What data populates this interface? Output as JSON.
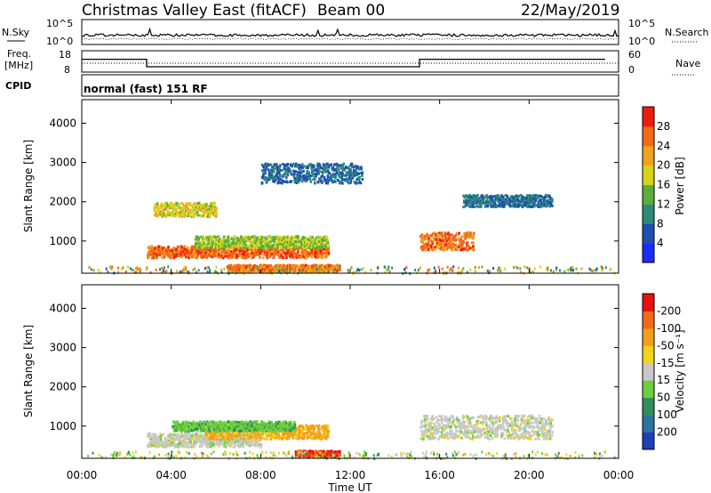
{
  "header": {
    "title": "Christmas Valley East (fitACF)",
    "beam": "Beam 00",
    "date": "22/May/2019"
  },
  "noise_panel": {
    "left_label": "N.Sky",
    "right_label": "N.Search",
    "left_ticks": [
      "10^5",
      "10^0"
    ],
    "right_ticks": [
      "10^5",
      "10^0"
    ]
  },
  "freq_panel": {
    "left_label_1": "Freq.",
    "left_label_2": "[MHz]",
    "right_label": "Nave",
    "left_ticks": [
      "18",
      "8"
    ],
    "right_ticks": [
      "60",
      "0"
    ],
    "cpid_label": "CPID",
    "cpid_value": "normal (fast) 151 RF"
  },
  "time_axis": {
    "label": "Time UT",
    "ticks": [
      "00:00",
      "04:00",
      "08:00",
      "12:00",
      "16:00",
      "20:00",
      "00:00"
    ]
  },
  "range_axis": {
    "label": "Slant Range [km]",
    "ticks": [
      "1000",
      "2000",
      "3000",
      "4000"
    ]
  },
  "power_colorbar": {
    "label": "Power [dB]",
    "ticks": [
      "4",
      "8",
      "12",
      "16",
      "20",
      "24",
      "28"
    ],
    "colors": [
      "#1a2cff",
      "#1f4fb0",
      "#2d8a78",
      "#5aae3c",
      "#d8d21a",
      "#f0a21a",
      "#f46a16",
      "#ee1c10"
    ]
  },
  "velocity_colorbar": {
    "label": "Velocity [m s⁻¹]",
    "ticks": [
      "200",
      "100",
      "50",
      "15",
      "-15",
      "-50",
      "-100",
      "-200"
    ],
    "colors": [
      "#1f3fb8",
      "#2b74a0",
      "#2e8f5a",
      "#6ecf3c",
      "#c8c8c8",
      "#f2d21a",
      "#f2a01a",
      "#f26a14",
      "#e81010"
    ]
  },
  "chart_data": {
    "type": "heatmap",
    "title": "Christmas Valley East (fitACF)",
    "subtitle": "Beam 00  22/May/2019",
    "xlabel": "Time UT",
    "ylabel": "Slant Range [km]",
    "xlim": [
      0,
      24
    ],
    "ylim": [
      180,
      4600
    ],
    "freq_schedule_mhz": [
      {
        "start": 0,
        "end": 2.9,
        "freq": 14.0
      },
      {
        "start": 2.9,
        "end": 15.1,
        "freq": 10.5
      },
      {
        "start": 15.1,
        "end": 23.4,
        "freq": 14.0
      }
    ],
    "power_regions_db": [
      {
        "t0": 2.9,
        "t1": 11.0,
        "r0": 600,
        "r1": 900,
        "power": 26
      },
      {
        "t0": 5.0,
        "t1": 11.0,
        "r0": 850,
        "r1": 1150,
        "power": 16
      },
      {
        "t0": 3.2,
        "t1": 6.0,
        "r0": 1650,
        "r1": 2000,
        "power": 18
      },
      {
        "t0": 6.5,
        "t1": 11.5,
        "r0": 250,
        "r1": 420,
        "power": 25
      },
      {
        "t0": 15.1,
        "t1": 17.5,
        "r0": 800,
        "r1": 1250,
        "power": 25
      },
      {
        "t0": 17.0,
        "t1": 21.0,
        "r0": 1900,
        "r1": 2200,
        "power": 8
      },
      {
        "t0": 8.0,
        "t1": 12.5,
        "r0": 2500,
        "r1": 3000,
        "power": 8
      }
    ],
    "velocity_regions_ms": [
      {
        "t0": 2.9,
        "t1": 8.0,
        "r0": 500,
        "r1": 850,
        "velocity": 0
      },
      {
        "t0": 5.5,
        "t1": 11.0,
        "r0": 700,
        "r1": 1050,
        "velocity": -60
      },
      {
        "t0": 4.0,
        "t1": 9.5,
        "r0": 900,
        "r1": 1150,
        "velocity": 40
      },
      {
        "t0": 9.5,
        "t1": 11.5,
        "r0": 250,
        "r1": 400,
        "velocity": -200
      },
      {
        "t0": 15.1,
        "t1": 21.0,
        "r0": 700,
        "r1": 1300,
        "velocity": 0
      }
    ]
  }
}
